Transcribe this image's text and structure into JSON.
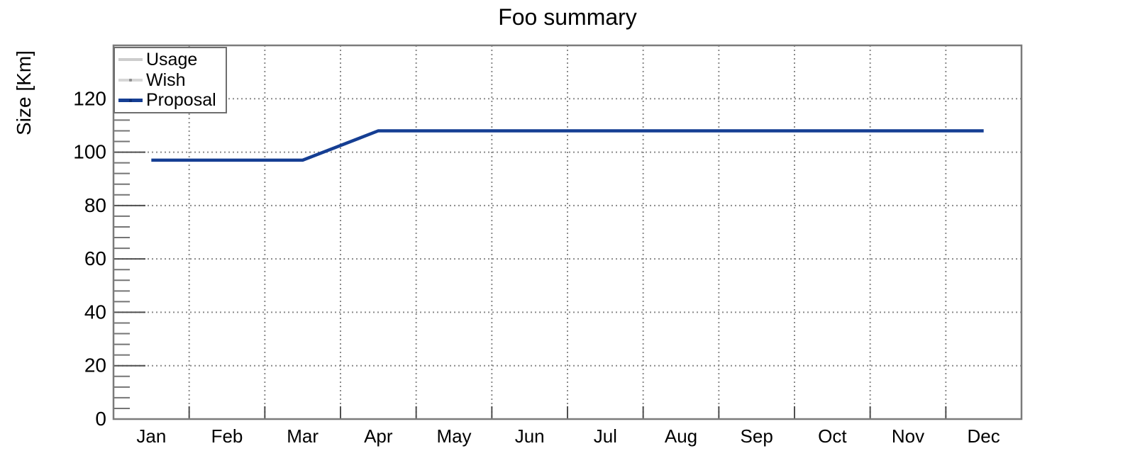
{
  "chart_data": {
    "type": "line",
    "title": "Foo summary",
    "xlabel": "",
    "ylabel": "Size [Km]",
    "categories": [
      "Jan",
      "Feb",
      "Mar",
      "Apr",
      "May",
      "Jun",
      "Jul",
      "Aug",
      "Sep",
      "Oct",
      "Nov",
      "Dec"
    ],
    "ylim": [
      0,
      140
    ],
    "ytick_values": [
      0,
      20,
      40,
      60,
      80,
      100,
      120
    ],
    "ytick_labels": [
      "0",
      "20",
      "40",
      "60",
      "80",
      "100",
      "120"
    ],
    "y_minor_tick_step": 4,
    "grid": "dotted",
    "legend_position": "top-left",
    "legend_entries": [
      "Usage",
      "Wish",
      "Proposal"
    ],
    "series": [
      {
        "name": "Usage",
        "color": "#cccccc",
        "line_width": 4,
        "marker_color": "",
        "values": []
      },
      {
        "name": "Wish",
        "color": "#d6d6d6",
        "line_width": 4,
        "marker_color": "#8f8f8f",
        "values": []
      },
      {
        "name": "Proposal",
        "color": "#153e93",
        "line_width": 4.5,
        "marker_color": "#0c2d75",
        "values": [
          97,
          97,
          97,
          108,
          108,
          108,
          108,
          108,
          108,
          108,
          108,
          108
        ]
      }
    ]
  },
  "colors": {
    "frame": "#7b7b7b",
    "grid": "#8a8a8a",
    "major_tick": "#4f4f4f",
    "minor_tick": "#757575",
    "x_tick": "#4f4f4f",
    "text": "#000000",
    "background": "#ffffff"
  }
}
